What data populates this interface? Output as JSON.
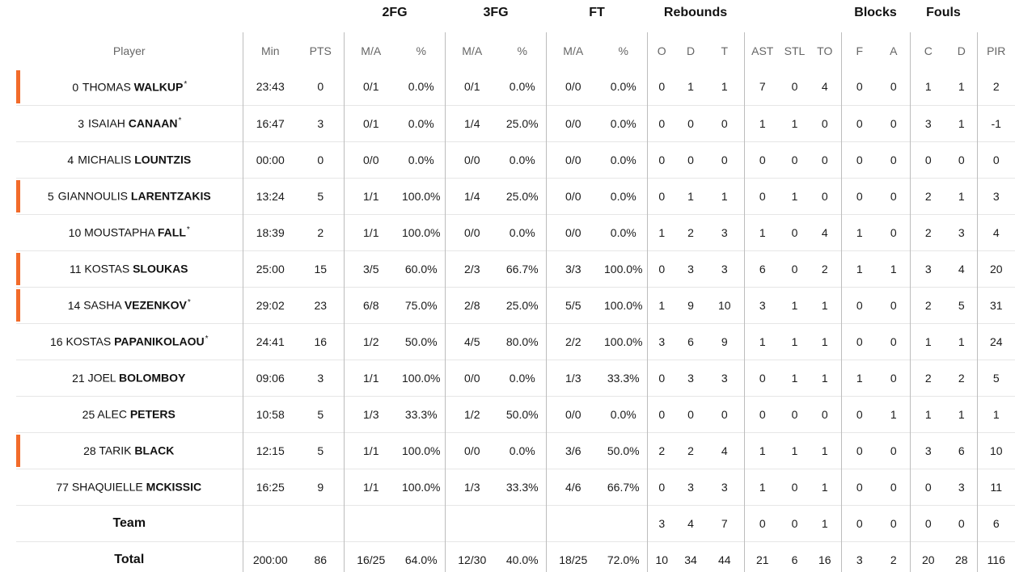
{
  "groups": {
    "fg2": "2FG",
    "fg3": "3FG",
    "ft": "FT",
    "rebounds": "Rebounds",
    "blocks": "Blocks",
    "fouls": "Fouls"
  },
  "columns": {
    "player": "Player",
    "min": "Min",
    "pts": "PTS",
    "fg2_ma": "M/A",
    "fg2_pct": "%",
    "fg3_ma": "M/A",
    "fg3_pct": "%",
    "ft_ma": "M/A",
    "ft_pct": "%",
    "reb_o": "O",
    "reb_d": "D",
    "reb_t": "T",
    "ast": "AST",
    "stl": "STL",
    "to": "TO",
    "blk_f": "F",
    "blk_a": "A",
    "foul_c": "C",
    "foul_d": "D",
    "pir": "PIR"
  },
  "accent_color": "#f26b2a",
  "players": [
    {
      "num": "0",
      "first": "THOMAS",
      "last": "WALKUP",
      "star": "*",
      "starter": true,
      "min": "23:43",
      "pts": "0",
      "fg2_ma": "0/1",
      "fg2_pct": "0.0%",
      "fg3_ma": "0/1",
      "fg3_pct": "0.0%",
      "ft_ma": "0/0",
      "ft_pct": "0.0%",
      "reb_o": "0",
      "reb_d": "1",
      "reb_t": "1",
      "ast": "7",
      "stl": "0",
      "to": "4",
      "blk_f": "0",
      "blk_a": "0",
      "foul_c": "1",
      "foul_d": "1",
      "pir": "2"
    },
    {
      "num": "3",
      "first": "ISAIAH",
      "last": "CANAAN",
      "star": "*",
      "starter": false,
      "min": "16:47",
      "pts": "3",
      "fg2_ma": "0/1",
      "fg2_pct": "0.0%",
      "fg3_ma": "1/4",
      "fg3_pct": "25.0%",
      "ft_ma": "0/0",
      "ft_pct": "0.0%",
      "reb_o": "0",
      "reb_d": "0",
      "reb_t": "0",
      "ast": "1",
      "stl": "1",
      "to": "0",
      "blk_f": "0",
      "blk_a": "0",
      "foul_c": "3",
      "foul_d": "1",
      "pir": "-1"
    },
    {
      "num": "4",
      "first": "MICHALIS",
      "last": "LOUNTZIS",
      "star": "",
      "starter": false,
      "min": "00:00",
      "pts": "0",
      "fg2_ma": "0/0",
      "fg2_pct": "0.0%",
      "fg3_ma": "0/0",
      "fg3_pct": "0.0%",
      "ft_ma": "0/0",
      "ft_pct": "0.0%",
      "reb_o": "0",
      "reb_d": "0",
      "reb_t": "0",
      "ast": "0",
      "stl": "0",
      "to": "0",
      "blk_f": "0",
      "blk_a": "0",
      "foul_c": "0",
      "foul_d": "0",
      "pir": "0"
    },
    {
      "num": "5",
      "first": "GIANNOULIS",
      "last": "LARENTZAKIS",
      "star": "",
      "starter": true,
      "min": "13:24",
      "pts": "5",
      "fg2_ma": "1/1",
      "fg2_pct": "100.0%",
      "fg3_ma": "1/4",
      "fg3_pct": "25.0%",
      "ft_ma": "0/0",
      "ft_pct": "0.0%",
      "reb_o": "0",
      "reb_d": "1",
      "reb_t": "1",
      "ast": "0",
      "stl": "1",
      "to": "0",
      "blk_f": "0",
      "blk_a": "0",
      "foul_c": "2",
      "foul_d": "1",
      "pir": "3"
    },
    {
      "num": "10",
      "first": "MOUSTAPHA",
      "last": "FALL",
      "star": "*",
      "starter": false,
      "min": "18:39",
      "pts": "2",
      "fg2_ma": "1/1",
      "fg2_pct": "100.0%",
      "fg3_ma": "0/0",
      "fg3_pct": "0.0%",
      "ft_ma": "0/0",
      "ft_pct": "0.0%",
      "reb_o": "1",
      "reb_d": "2",
      "reb_t": "3",
      "ast": "1",
      "stl": "0",
      "to": "4",
      "blk_f": "1",
      "blk_a": "0",
      "foul_c": "2",
      "foul_d": "3",
      "pir": "4"
    },
    {
      "num": "11",
      "first": "KOSTAS",
      "last": "SLOUKAS",
      "star": "",
      "starter": true,
      "min": "25:00",
      "pts": "15",
      "fg2_ma": "3/5",
      "fg2_pct": "60.0%",
      "fg3_ma": "2/3",
      "fg3_pct": "66.7%",
      "ft_ma": "3/3",
      "ft_pct": "100.0%",
      "reb_o": "0",
      "reb_d": "3",
      "reb_t": "3",
      "ast": "6",
      "stl": "0",
      "to": "2",
      "blk_f": "1",
      "blk_a": "1",
      "foul_c": "3",
      "foul_d": "4",
      "pir": "20"
    },
    {
      "num": "14",
      "first": "SASHA",
      "last": "VEZENKOV",
      "star": "*",
      "starter": true,
      "min": "29:02",
      "pts": "23",
      "fg2_ma": "6/8",
      "fg2_pct": "75.0%",
      "fg3_ma": "2/8",
      "fg3_pct": "25.0%",
      "ft_ma": "5/5",
      "ft_pct": "100.0%",
      "reb_o": "1",
      "reb_d": "9",
      "reb_t": "10",
      "ast": "3",
      "stl": "1",
      "to": "1",
      "blk_f": "0",
      "blk_a": "0",
      "foul_c": "2",
      "foul_d": "5",
      "pir": "31"
    },
    {
      "num": "16",
      "first": "KOSTAS",
      "last": "PAPANIKOLAOU",
      "star": "*",
      "starter": false,
      "min": "24:41",
      "pts": "16",
      "fg2_ma": "1/2",
      "fg2_pct": "50.0%",
      "fg3_ma": "4/5",
      "fg3_pct": "80.0%",
      "ft_ma": "2/2",
      "ft_pct": "100.0%",
      "reb_o": "3",
      "reb_d": "6",
      "reb_t": "9",
      "ast": "1",
      "stl": "1",
      "to": "1",
      "blk_f": "0",
      "blk_a": "0",
      "foul_c": "1",
      "foul_d": "1",
      "pir": "24"
    },
    {
      "num": "21",
      "first": "JOEL",
      "last": "BOLOMBOY",
      "star": "",
      "starter": false,
      "min": "09:06",
      "pts": "3",
      "fg2_ma": "1/1",
      "fg2_pct": "100.0%",
      "fg3_ma": "0/0",
      "fg3_pct": "0.0%",
      "ft_ma": "1/3",
      "ft_pct": "33.3%",
      "reb_o": "0",
      "reb_d": "3",
      "reb_t": "3",
      "ast": "0",
      "stl": "1",
      "to": "1",
      "blk_f": "1",
      "blk_a": "0",
      "foul_c": "2",
      "foul_d": "2",
      "pir": "5"
    },
    {
      "num": "25",
      "first": "ALEC",
      "last": "PETERS",
      "star": "",
      "starter": false,
      "min": "10:58",
      "pts": "5",
      "fg2_ma": "1/3",
      "fg2_pct": "33.3%",
      "fg3_ma": "1/2",
      "fg3_pct": "50.0%",
      "ft_ma": "0/0",
      "ft_pct": "0.0%",
      "reb_o": "0",
      "reb_d": "0",
      "reb_t": "0",
      "ast": "0",
      "stl": "0",
      "to": "0",
      "blk_f": "0",
      "blk_a": "1",
      "foul_c": "1",
      "foul_d": "1",
      "pir": "1"
    },
    {
      "num": "28",
      "first": "TARIK",
      "last": "BLACK",
      "star": "",
      "starter": true,
      "min": "12:15",
      "pts": "5",
      "fg2_ma": "1/1",
      "fg2_pct": "100.0%",
      "fg3_ma": "0/0",
      "fg3_pct": "0.0%",
      "ft_ma": "3/6",
      "ft_pct": "50.0%",
      "reb_o": "2",
      "reb_d": "2",
      "reb_t": "4",
      "ast": "1",
      "stl": "1",
      "to": "1",
      "blk_f": "0",
      "blk_a": "0",
      "foul_c": "3",
      "foul_d": "6",
      "pir": "10"
    },
    {
      "num": "77",
      "first": "SHAQUIELLE",
      "last": "MCKISSIC",
      "star": "",
      "starter": false,
      "min": "16:25",
      "pts": "9",
      "fg2_ma": "1/1",
      "fg2_pct": "100.0%",
      "fg3_ma": "1/3",
      "fg3_pct": "33.3%",
      "ft_ma": "4/6",
      "ft_pct": "66.7%",
      "reb_o": "0",
      "reb_d": "3",
      "reb_t": "3",
      "ast": "1",
      "stl": "0",
      "to": "1",
      "blk_f": "0",
      "blk_a": "0",
      "foul_c": "0",
      "foul_d": "3",
      "pir": "11"
    }
  ],
  "team": {
    "label": "Team",
    "min": "",
    "pts": "",
    "fg2_ma": "",
    "fg2_pct": "",
    "fg3_ma": "",
    "fg3_pct": "",
    "ft_ma": "",
    "ft_pct": "",
    "reb_o": "3",
    "reb_d": "4",
    "reb_t": "7",
    "ast": "0",
    "stl": "0",
    "to": "1",
    "blk_f": "0",
    "blk_a": "0",
    "foul_c": "0",
    "foul_d": "0",
    "pir": "6"
  },
  "total": {
    "label": "Total",
    "min": "200:00",
    "pts": "86",
    "fg2_ma": "16/25",
    "fg2_pct": "64.0%",
    "fg3_ma": "12/30",
    "fg3_pct": "40.0%",
    "ft_ma": "18/25",
    "ft_pct": "72.0%",
    "reb_o": "10",
    "reb_d": "34",
    "reb_t": "44",
    "ast": "21",
    "stl": "6",
    "to": "16",
    "blk_f": "3",
    "blk_a": "2",
    "foul_c": "20",
    "foul_d": "28",
    "pir": "116"
  }
}
